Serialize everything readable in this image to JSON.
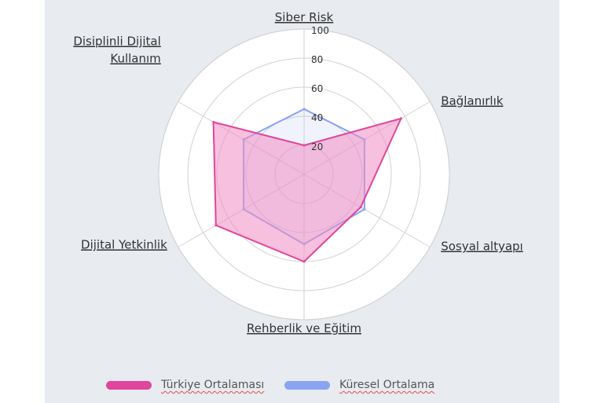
{
  "chart_data": {
    "type": "radar",
    "axes": [
      "Siber Risk",
      "Bağlanırlık",
      "Sosyal altyapı",
      "Rehberlik ve Eğitim",
      "Dijital Yetkinlik",
      "Disiplinli Dijital Kullanım"
    ],
    "axis_label_lines": [
      [
        "Siber Risk"
      ],
      [
        "Bağlanırlık"
      ],
      [
        "Sosyal altyapı"
      ],
      [
        "Rehberlik ve Eğitim"
      ],
      [
        "Dijital Yetkinlik"
      ],
      [
        "Disiplinli Dijital",
        "Kullanım"
      ]
    ],
    "ticks": [
      20,
      40,
      60,
      80,
      100
    ],
    "range": [
      0,
      100
    ],
    "series": [
      {
        "name": "Türkiye Ortalaması",
        "values": [
          20,
          77,
          45,
          60,
          70,
          72
        ],
        "color": "#e0469c",
        "fill": "rgba(240,140,195,0.55)"
      },
      {
        "name": "Küresel Ortalama",
        "values": [
          45,
          48,
          48,
          48,
          48,
          48
        ],
        "color": "#8aa4f2",
        "fill": "rgba(170,190,240,0.18)"
      }
    ],
    "legend_position": "bottom"
  }
}
